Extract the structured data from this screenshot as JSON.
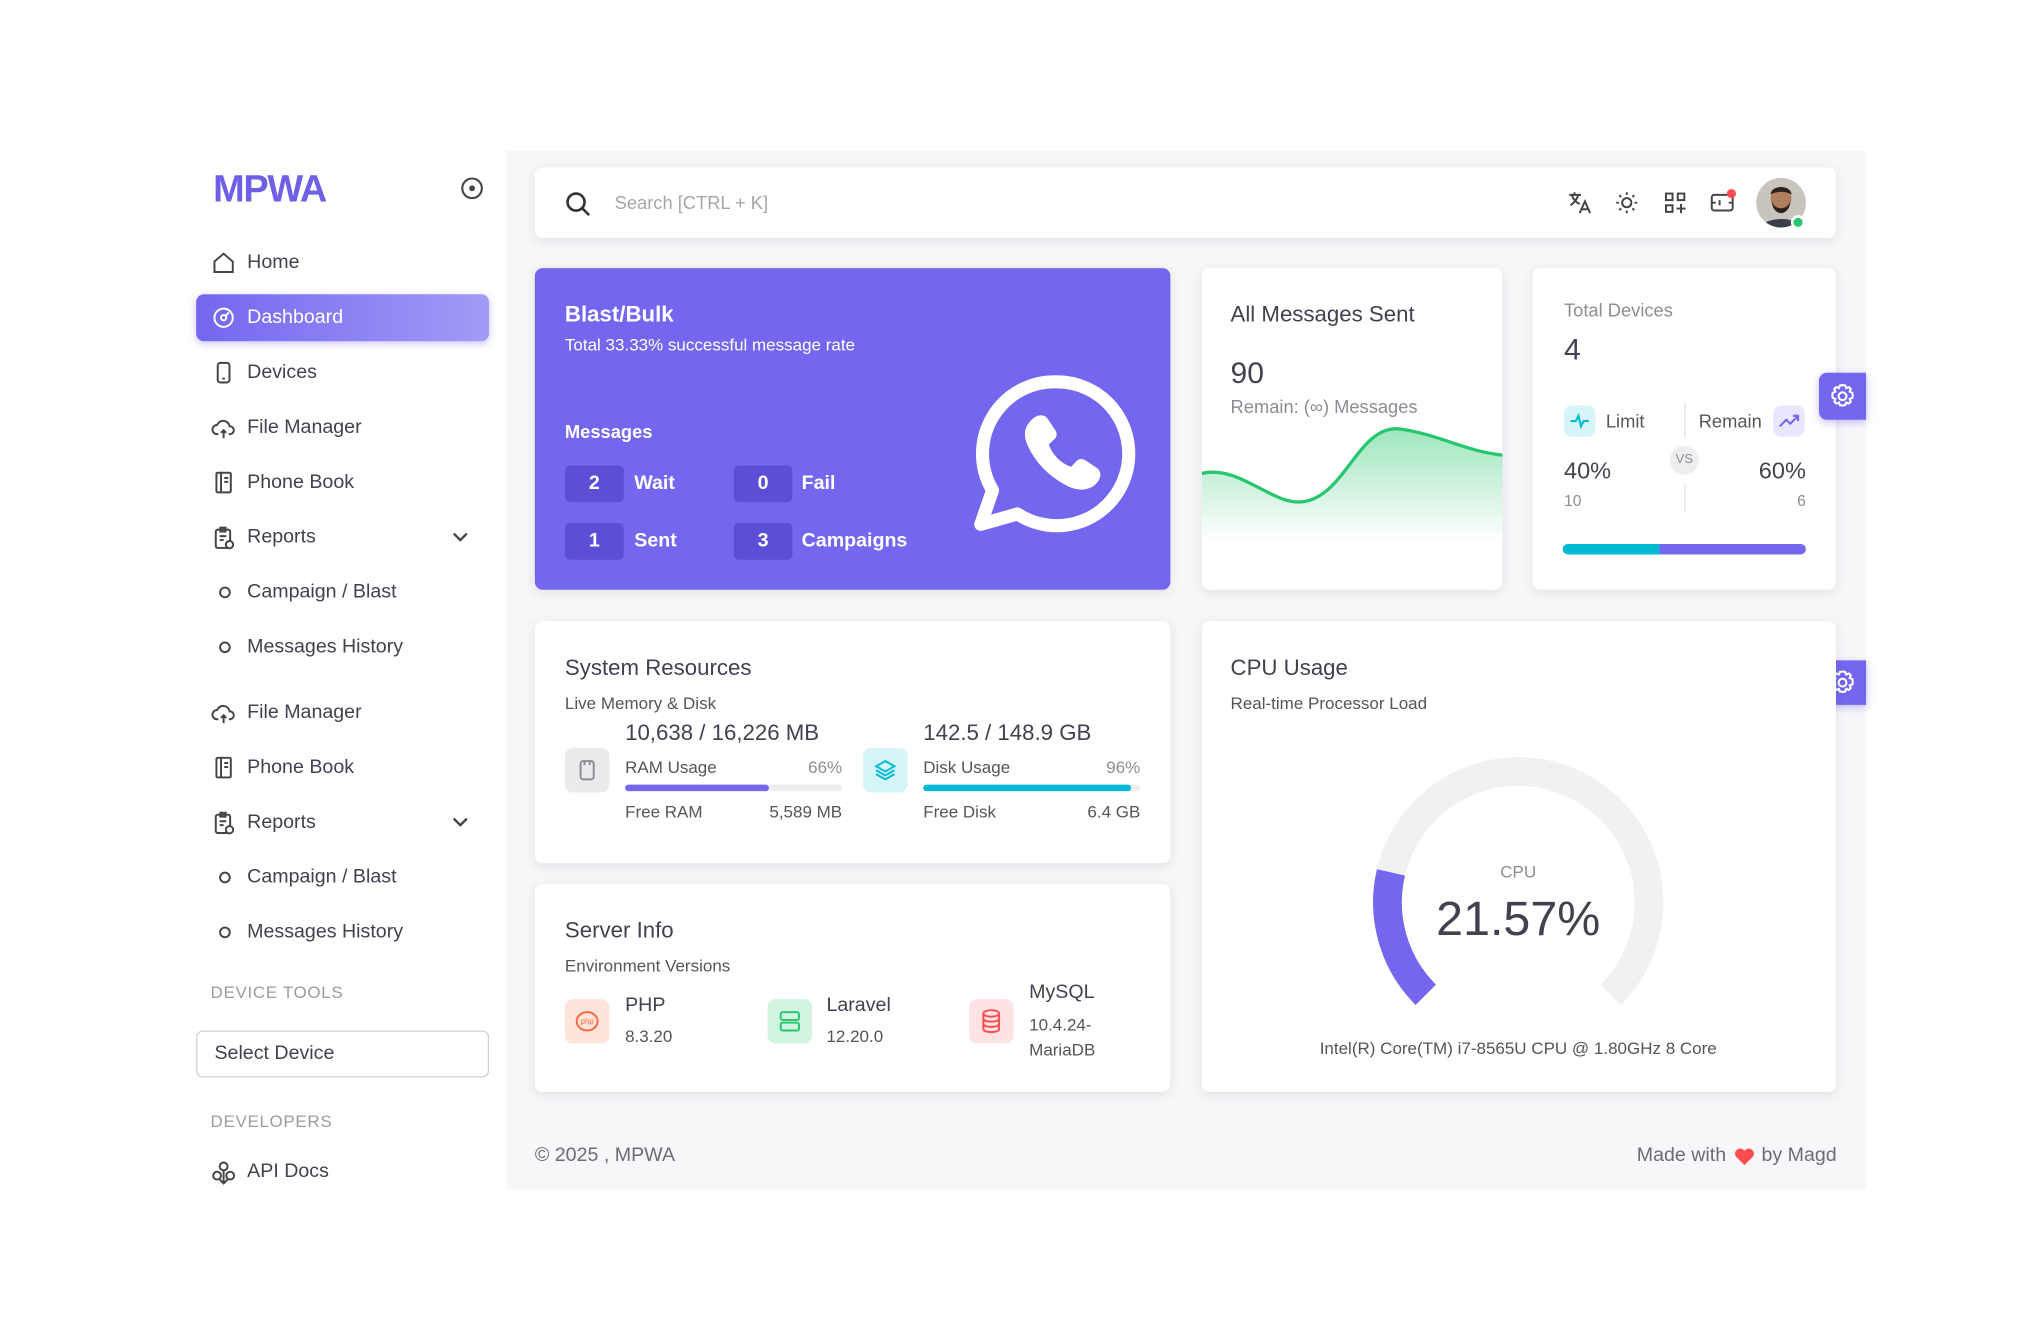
{
  "sidebar": {
    "logo": "MPWA",
    "nav": [
      "Home",
      "Dashboard",
      "Devices",
      "File Manager",
      "Phone Book",
      "Reports",
      "Campaign / Blast",
      "Messages History",
      "File Manager",
      "Phone Book",
      "Reports",
      "Campaign / Blast",
      "Messages History"
    ],
    "device_tools_heading": "DEVICE TOOLS",
    "select_device": "Select Device",
    "developers_heading": "DEVELOPERS",
    "api_docs": "API Docs"
  },
  "topbar": {
    "search_placeholder": "Search [CTRL + K]"
  },
  "blast": {
    "title": "Blast/Bulk",
    "subtitle": "Total 33.33% successful message rate",
    "messages_label": "Messages",
    "stats": [
      {
        "count": 2,
        "label": "Wait"
      },
      {
        "count": 0,
        "label": "Fail"
      },
      {
        "count": 1,
        "label": "Sent"
      },
      {
        "count": 3,
        "label": "Campaigns"
      }
    ]
  },
  "messages_sent": {
    "title": "All Messages Sent",
    "count": 90,
    "remain": "Remain: (∞) Messages"
  },
  "devices": {
    "title": "Total Devices",
    "count": 4,
    "limit_label": "Limit",
    "remain_label": "Remain",
    "vs": "VS",
    "limit_percent": {
      "value": 40,
      "label": "40%"
    },
    "remain_percent": {
      "value": 60,
      "label": "60%"
    },
    "limit_count": 10,
    "remain_count": 6
  },
  "system_resources": {
    "title": "System Resources",
    "subtitle": "Live Memory & Disk",
    "ram": {
      "total": "10,638 / 16,226 MB",
      "label": "RAM Usage",
      "percent": {
        "value": 66,
        "label": "66%"
      },
      "free_label": "Free RAM",
      "free": "5,589 MB"
    },
    "disk": {
      "total": "142.5 / 148.9 GB",
      "label": "Disk Usage",
      "percent": {
        "value": 96,
        "label": "96%"
      },
      "free_label": "Free Disk",
      "free": "6.4 GB"
    }
  },
  "server_info": {
    "title": "Server Info",
    "subtitle": "Environment Versions",
    "items": [
      {
        "name": "PHP",
        "version": "8.3.20"
      },
      {
        "name": "Laravel",
        "version": "12.20.0"
      },
      {
        "name": "MySQL",
        "version": "10.4.24-MariaDB"
      }
    ]
  },
  "cpu": {
    "title": "CPU Usage",
    "subtitle": "Real-time Processor Load",
    "gauge_label": "CPU",
    "usage": {
      "value": 21.57,
      "label": "21.57%"
    },
    "processor": "Intel(R) Core(TM) i7-8565U CPU @ 1.80GHz 8 Core"
  },
  "footer": {
    "copyright": "© 2025 , MPWA",
    "made_with": "Made with",
    "by": "by Magd"
  }
}
